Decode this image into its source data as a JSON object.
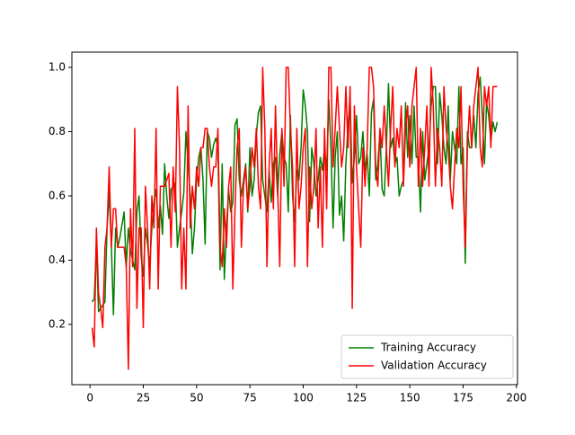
{
  "chart_data": {
    "type": "line",
    "x": [
      1,
      2,
      3,
      4,
      5,
      6,
      7,
      8,
      9,
      10,
      11,
      12,
      13,
      14,
      15,
      16,
      17,
      18,
      19,
      20,
      21,
      22,
      23,
      24,
      25,
      26,
      27,
      28,
      29,
      30,
      31,
      32,
      33,
      34,
      35,
      36,
      37,
      38,
      39,
      40,
      41,
      42,
      43,
      44,
      45,
      46,
      47,
      48,
      49,
      50,
      51,
      52,
      53,
      54,
      55,
      56,
      57,
      58,
      59,
      60,
      61,
      62,
      63,
      64,
      65,
      66,
      67,
      68,
      69,
      70,
      71,
      72,
      73,
      74,
      75,
      76,
      77,
      78,
      79,
      80,
      81,
      82,
      83,
      84,
      85,
      86,
      87,
      88,
      89,
      90,
      91,
      92,
      93,
      94,
      95,
      96,
      97,
      98,
      99,
      100,
      101,
      102,
      103,
      104,
      105,
      106,
      107,
      108,
      109,
      110,
      111,
      112,
      113,
      114,
      115,
      116,
      117,
      118,
      119,
      120,
      121,
      122,
      123,
      124,
      125,
      126,
      127,
      128,
      129,
      130,
      131,
      132,
      133,
      134,
      135,
      136,
      137,
      138,
      139,
      140,
      141,
      142,
      143,
      144,
      145,
      146,
      147,
      148,
      149,
      150,
      151,
      152,
      153,
      154,
      155,
      156,
      157,
      158,
      159,
      160,
      161,
      162,
      163,
      164,
      165,
      166,
      167,
      168,
      169,
      170,
      171,
      172,
      173,
      174,
      175,
      176,
      177,
      178,
      179,
      180,
      181,
      182,
      183,
      184,
      185,
      186,
      187,
      188,
      189,
      190,
      191
    ],
    "series": [
      {
        "name": "Training Accuracy",
        "color": "#008000",
        "values": [
          0.27,
          0.28,
          0.45,
          0.24,
          0.25,
          0.26,
          0.27,
          0.5,
          0.61,
          0.45,
          0.23,
          0.5,
          0.44,
          0.47,
          0.51,
          0.55,
          0.38,
          0.5,
          0.43,
          0.4,
          0.37,
          0.55,
          0.6,
          0.41,
          0.35,
          0.5,
          0.45,
          0.38,
          0.5,
          0.58,
          0.62,
          0.5,
          0.57,
          0.48,
          0.7,
          0.6,
          0.53,
          0.62,
          0.63,
          0.64,
          0.44,
          0.5,
          0.55,
          0.61,
          0.8,
          0.7,
          0.6,
          0.42,
          0.5,
          0.65,
          0.72,
          0.75,
          0.65,
          0.45,
          0.8,
          0.78,
          0.72,
          0.76,
          0.78,
          0.75,
          0.37,
          0.7,
          0.34,
          0.5,
          0.62,
          0.55,
          0.58,
          0.82,
          0.84,
          0.65,
          0.6,
          0.65,
          0.7,
          0.55,
          0.75,
          0.6,
          0.65,
          0.79,
          0.86,
          0.88,
          0.65,
          0.6,
          0.55,
          0.68,
          0.58,
          0.7,
          0.72,
          0.6,
          0.73,
          0.8,
          0.72,
          0.7,
          0.55,
          0.85,
          0.6,
          0.52,
          0.68,
          0.65,
          0.75,
          0.93,
          0.88,
          0.8,
          0.52,
          0.75,
          0.7,
          0.6,
          0.65,
          0.72,
          0.68,
          0.75,
          0.68,
          0.9,
          0.75,
          0.5,
          0.72,
          0.8,
          0.54,
          0.6,
          0.46,
          0.7,
          0.82,
          0.9,
          0.64,
          0.72,
          0.85,
          0.7,
          0.72,
          0.8,
          0.68,
          0.73,
          0.6,
          0.86,
          0.9,
          0.65,
          0.7,
          0.8,
          0.62,
          0.6,
          0.75,
          0.95,
          0.75,
          0.78,
          0.7,
          0.72,
          0.6,
          0.63,
          0.65,
          0.89,
          0.72,
          0.85,
          0.7,
          0.88,
          0.72,
          0.72,
          0.55,
          0.8,
          0.65,
          0.7,
          0.75,
          0.88,
          0.94,
          0.94,
          0.7,
          0.92,
          0.85,
          0.75,
          0.7,
          0.88,
          0.65,
          0.8,
          0.75,
          0.7,
          0.94,
          0.7,
          0.75,
          0.39,
          0.8,
          0.75,
          0.75,
          0.85,
          0.75,
          0.92,
          0.97,
          0.85,
          0.7,
          0.89,
          0.85,
          0.77,
          0.83,
          0.8,
          0.83
        ]
      },
      {
        "name": "Validation Accuracy",
        "color": "#ff0000",
        "values": [
          0.19,
          0.13,
          0.5,
          0.3,
          0.25,
          0.19,
          0.44,
          0.5,
          0.69,
          0.44,
          0.56,
          0.56,
          0.44,
          0.44,
          0.44,
          0.44,
          0.38,
          0.06,
          0.56,
          0.38,
          0.81,
          0.25,
          0.5,
          0.5,
          0.19,
          0.63,
          0.5,
          0.31,
          0.6,
          0.5,
          0.81,
          0.31,
          0.63,
          0.63,
          0.63,
          0.65,
          0.67,
          0.44,
          0.69,
          0.55,
          0.94,
          0.75,
          0.31,
          0.5,
          0.31,
          0.88,
          0.5,
          0.63,
          0.56,
          0.69,
          0.63,
          0.75,
          0.75,
          0.81,
          0.81,
          0.69,
          0.63,
          0.69,
          0.69,
          0.81,
          0.44,
          0.38,
          0.56,
          0.44,
          0.63,
          0.69,
          0.31,
          0.56,
          0.75,
          0.81,
          0.44,
          0.63,
          0.69,
          0.56,
          0.63,
          0.75,
          0.69,
          0.81,
          0.63,
          0.56,
          1.0,
          0.81,
          0.38,
          0.69,
          0.81,
          0.56,
          0.88,
          0.63,
          0.38,
          0.81,
          0.63,
          1.0,
          1.0,
          0.81,
          0.69,
          0.38,
          0.81,
          0.56,
          0.63,
          0.75,
          0.81,
          0.38,
          0.69,
          0.56,
          0.63,
          0.81,
          0.5,
          0.69,
          0.44,
          0.81,
          0.56,
          1.0,
          1.0,
          0.69,
          0.81,
          0.94,
          0.81,
          0.69,
          0.75,
          0.94,
          0.75,
          0.94,
          0.25,
          0.88,
          0.69,
          0.56,
          0.44,
          0.75,
          0.63,
          0.75,
          1.0,
          1.0,
          0.94,
          0.69,
          0.63,
          0.81,
          0.75,
          0.88,
          0.75,
          0.63,
          0.81,
          0.94,
          0.69,
          0.81,
          0.75,
          0.88,
          0.63,
          0.81,
          0.88,
          0.69,
          0.88,
          0.94,
          1.0,
          0.63,
          0.81,
          0.63,
          0.75,
          0.88,
          0.63,
          1.0,
          0.88,
          0.63,
          0.81,
          0.75,
          0.63,
          0.94,
          0.81,
          0.75,
          0.63,
          0.56,
          0.69,
          0.81,
          0.75,
          0.94,
          0.63,
          0.44,
          0.75,
          0.88,
          0.75,
          0.88,
          0.94,
          1.0,
          0.75,
          0.69,
          0.94,
          0.88,
          0.94,
          0.75,
          0.94,
          0.94,
          0.94
        ]
      }
    ],
    "xlim": [
      -8.5,
      200.5
    ],
    "xticks": [
      0,
      25,
      50,
      75,
      100,
      125,
      150,
      175,
      200
    ],
    "ylim": [
      0.0125,
      1.0475
    ],
    "yticks": [
      0.2,
      0.4,
      0.6,
      0.8,
      {
        "value": 1,
        "label": "1.0"
      }
    ],
    "legend": "lower right"
  }
}
